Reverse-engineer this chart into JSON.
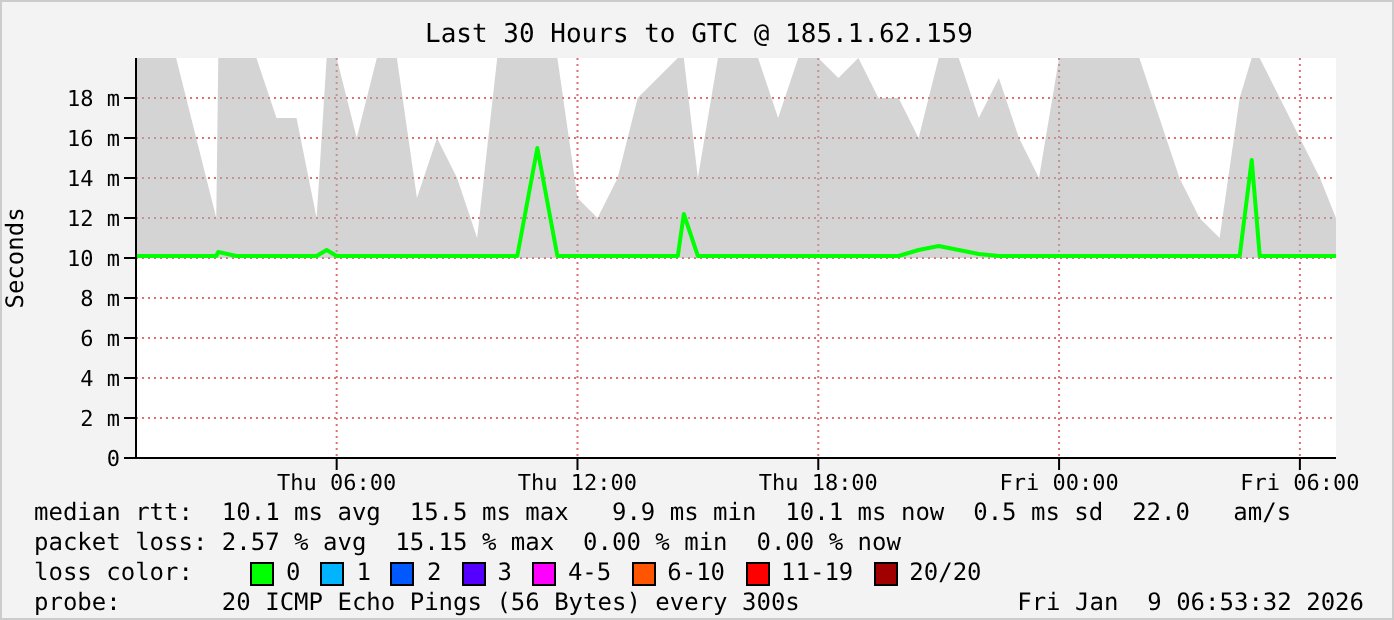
{
  "chart_data": {
    "type": "line",
    "title": "Last 30 Hours to GTC @ 185.1.62.159",
    "ylabel": "Seconds",
    "xlim": [
      "2026-01-08T01:00",
      "2026-01-09T06:54"
    ],
    "xticks": [
      {
        "value": "2026-01-08T06:00",
        "label": "Thu 06:00"
      },
      {
        "value": "2026-01-08T12:00",
        "label": "Thu 12:00"
      },
      {
        "value": "2026-01-08T18:00",
        "label": "Thu 18:00"
      },
      {
        "value": "2026-01-09T00:00",
        "label": "Fri 00:00"
      },
      {
        "value": "2026-01-09T06:00",
        "label": "Fri 06:00"
      }
    ],
    "ylim": [
      0,
      20
    ],
    "yticks": [
      0,
      {
        "value": 2,
        "label": "2 m"
      },
      {
        "value": 4,
        "label": "4 m"
      },
      {
        "value": 6,
        "label": "6 m"
      },
      {
        "value": 8,
        "label": "8 m"
      },
      {
        "value": 10,
        "label": "10 m"
      },
      {
        "value": 12,
        "label": "12 m"
      },
      {
        "value": 14,
        "label": "14 m"
      },
      {
        "value": 16,
        "label": "16 m"
      },
      {
        "value": 18,
        "label": "18 m"
      }
    ],
    "grid": true,
    "legend": "bottom",
    "legend_title": "loss color:",
    "marker": "none",
    "line_style": "solid",
    "series": [
      {
        "name": "0",
        "color": "#00ff00",
        "x": [
          "2026-01-08T01:00",
          "2026-01-08T01:30",
          "2026-01-08T02:00",
          "2026-01-08T02:30",
          "2026-01-08T03:00",
          "2026-01-08T03:03",
          "2026-01-08T03:30",
          "2026-01-08T04:00",
          "2026-01-08T04:30",
          "2026-01-08T05:00",
          "2026-01-08T05:30",
          "2026-01-08T05:45",
          "2026-01-08T06:00",
          "2026-01-08T06:30",
          "2026-01-08T07:00",
          "2026-01-08T07:30",
          "2026-01-08T08:00",
          "2026-01-08T08:30",
          "2026-01-08T09:00",
          "2026-01-08T09:30",
          "2026-01-08T10:00",
          "2026-01-08T10:30",
          "2026-01-08T11:00",
          "2026-01-08T11:30",
          "2026-01-08T12:00",
          "2026-01-08T12:30",
          "2026-01-08T13:00",
          "2026-01-08T13:30",
          "2026-01-08T14:00",
          "2026-01-08T14:30",
          "2026-01-08T14:39",
          "2026-01-08T15:00",
          "2026-01-08T15:30",
          "2026-01-08T16:00",
          "2026-01-08T16:30",
          "2026-01-08T17:00",
          "2026-01-08T17:30",
          "2026-01-08T18:00",
          "2026-01-08T18:30",
          "2026-01-08T19:00",
          "2026-01-08T19:30",
          "2026-01-08T20:00",
          "2026-01-08T20:30",
          "2026-01-08T21:00",
          "2026-01-08T21:30",
          "2026-01-08T22:00",
          "2026-01-08T22:30",
          "2026-01-08T23:00",
          "2026-01-08T23:30",
          "2026-01-09T00:00",
          "2026-01-09T00:30",
          "2026-01-09T01:00",
          "2026-01-09T01:30",
          "2026-01-09T02:00",
          "2026-01-09T02:30",
          "2026-01-09T03:00",
          "2026-01-09T03:30",
          "2026-01-09T04:00",
          "2026-01-09T04:30",
          "2026-01-09T04:48",
          "2026-01-09T05:00",
          "2026-01-09T05:30",
          "2026-01-09T06:00",
          "2026-01-09T06:30",
          "2026-01-09T06:54"
        ],
        "values": [
          10.1,
          10.1,
          10.1,
          10.1,
          10.1,
          10.3,
          10.1,
          10.1,
          10.1,
          10.1,
          10.1,
          10.4,
          10.1,
          10.1,
          10.1,
          10.1,
          10.1,
          10.1,
          10.1,
          10.1,
          10.1,
          10.1,
          15.5,
          10.1,
          10.1,
          10.1,
          10.1,
          10.1,
          10.1,
          10.1,
          12.2,
          10.1,
          10.1,
          10.1,
          10.1,
          10.1,
          10.1,
          10.1,
          10.1,
          10.1,
          10.1,
          10.1,
          10.4,
          10.6,
          10.4,
          10.2,
          10.1,
          10.1,
          10.1,
          10.1,
          10.1,
          10.1,
          10.1,
          10.1,
          10.1,
          10.1,
          10.1,
          10.1,
          10.1,
          14.9,
          10.1,
          10.1,
          10.1,
          10.1,
          10.1
        ],
        "lower": [
          10,
          10,
          10,
          10,
          10,
          10,
          10,
          10,
          10,
          10,
          10,
          10,
          10,
          10,
          10,
          10,
          10,
          10,
          10,
          10,
          10,
          10,
          10,
          10,
          10,
          10,
          10,
          10,
          10,
          10,
          10,
          10,
          10,
          10,
          10,
          10,
          10,
          10,
          10,
          10,
          10,
          10,
          10,
          10,
          10,
          10,
          10,
          10,
          10,
          10,
          10,
          10,
          10,
          10,
          10,
          10,
          10,
          10,
          10,
          10,
          10,
          10,
          10,
          10,
          10
        ],
        "upper": [
          20,
          20,
          20,
          16,
          12,
          20,
          20,
          20,
          17,
          17,
          12,
          20,
          20,
          16,
          20,
          20,
          13,
          16,
          14,
          11,
          20,
          20,
          20,
          20,
          13,
          12,
          14,
          18,
          19,
          20,
          20,
          14,
          20,
          20,
          20,
          17,
          20,
          20,
          19,
          20,
          18,
          18,
          16,
          20,
          20,
          17,
          19,
          16,
          14,
          20,
          20,
          20,
          20,
          20,
          17,
          14,
          12,
          11,
          18,
          20,
          20,
          18,
          16,
          14,
          12
        ]
      },
      {
        "name": "1",
        "color": "#00b4ff"
      },
      {
        "name": "2",
        "color": "#0059ff"
      },
      {
        "name": "3",
        "color": "#5500ff"
      },
      {
        "name": "4-5",
        "color": "#ff00ff"
      },
      {
        "name": "6-10",
        "color": "#ff5500"
      },
      {
        "name": "11-19",
        "color": "#ff0000"
      },
      {
        "name": "20/20",
        "color": "#a10000"
      }
    ],
    "annotations": [
      "median rtt:  10.1 ms avg  15.5 ms max   9.9 ms min  10.1 ms now  0.5 ms sd  22.0   am/s",
      "packet loss: 2.57 % avg  15.15 % max  0.00 % min  0.00 % now",
      "probe:       20 ICMP Echo Pings (56 Bytes) every 300s",
      "Fri Jan  9 06:53:32 2026"
    ]
  }
}
